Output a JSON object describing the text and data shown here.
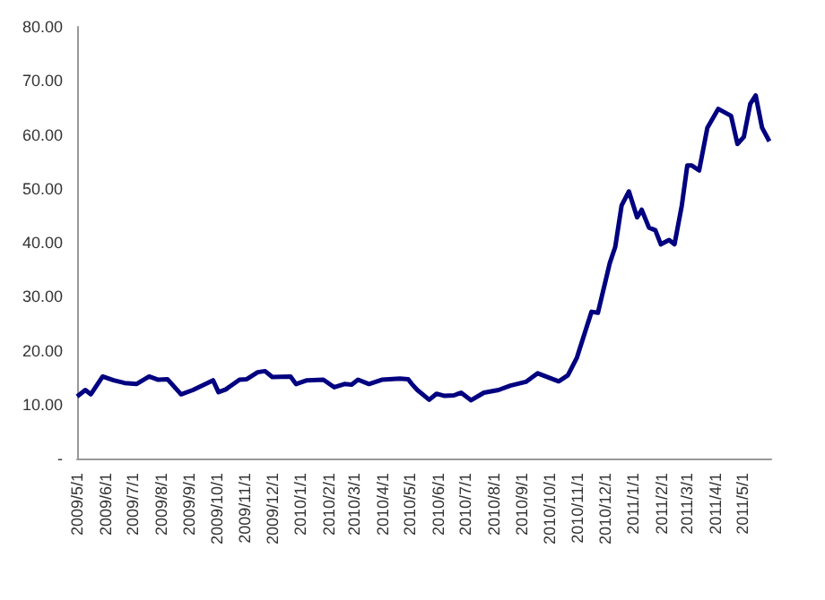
{
  "chart_data": {
    "type": "line",
    "x": [
      "2009-05-01",
      "2009-05-10",
      "2009-05-16",
      "2009-05-29",
      "2009-06-10",
      "2009-06-22",
      "2009-07-05",
      "2009-07-19",
      "2009-07-29",
      "2009-08-08",
      "2009-08-23",
      "2009-09-05",
      "2009-09-27",
      "2009-10-03",
      "2009-10-11",
      "2009-10-26",
      "2009-11-03",
      "2009-11-15",
      "2009-11-23",
      "2009-12-01",
      "2009-12-21",
      "2009-12-27",
      "2010-01-08",
      "2010-01-26",
      "2010-02-07",
      "2010-02-18",
      "2010-02-26",
      "2010-03-05",
      "2010-03-17",
      "2010-03-31",
      "2010-04-20",
      "2010-04-29",
      "2010-05-03",
      "2010-05-09",
      "2010-05-22",
      "2010-05-30",
      "2010-06-08",
      "2010-06-18",
      "2010-06-26",
      "2010-07-07",
      "2010-07-21",
      "2010-08-06",
      "2010-08-19",
      "2010-09-05",
      "2010-09-18",
      "2010-10-11",
      "2010-10-21",
      "2010-10-31",
      "2010-11-16",
      "2010-11-23",
      "2010-12-06",
      "2010-12-12",
      "2010-12-19",
      "2010-12-27",
      "2011-01-05",
      "2011-01-10",
      "2011-01-18",
      "2011-01-25",
      "2011-01-31",
      "2011-02-09",
      "2011-02-15",
      "2011-02-23",
      "2011-03-01",
      "2011-03-06",
      "2011-03-14",
      "2011-03-23",
      "2011-04-04",
      "2011-04-18",
      "2011-04-25",
      "2011-05-02",
      "2011-05-09",
      "2011-05-15",
      "2011-05-22",
      "2011-05-30"
    ],
    "series": [
      {
        "color": "#000080",
        "values": [
          11.5,
          12.7,
          11.9,
          15.2,
          14.5,
          14.0,
          13.8,
          15.2,
          14.6,
          14.7,
          11.9,
          12.7,
          14.5,
          12.3,
          12.8,
          14.6,
          14.7,
          16.0,
          16.2,
          15.1,
          15.2,
          13.8,
          14.5,
          14.6,
          13.2,
          13.8,
          13.7,
          14.6,
          13.8,
          14.6,
          14.8,
          14.7,
          13.8,
          12.7,
          10.9,
          12.0,
          11.6,
          11.7,
          12.2,
          10.8,
          12.2,
          12.7,
          13.5,
          14.2,
          15.8,
          14.3,
          15.4,
          18.7,
          27.2,
          27.0,
          36.2,
          39.2,
          46.9,
          49.5,
          44.7,
          46.1,
          42.8,
          42.3,
          39.7,
          40.5,
          39.7,
          46.9,
          54.3,
          54.3,
          53.4,
          61.3,
          64.8,
          63.5,
          58.3,
          59.6,
          65.7,
          67.3,
          61.3,
          58.8
        ]
      }
    ],
    "xlim": [
      "2009-05-01",
      "2011-06-01"
    ],
    "xticks": [
      {
        "value": "2009-05-01",
        "label": "2009/5/1"
      },
      {
        "value": "2009-06-01",
        "label": "2009/6/1"
      },
      {
        "value": "2009-07-01",
        "label": "2009/7/1"
      },
      {
        "value": "2009-08-01",
        "label": "2009/8/1"
      },
      {
        "value": "2009-09-01",
        "label": "2009/9/1"
      },
      {
        "value": "2009-10-01",
        "label": "2009/10/1"
      },
      {
        "value": "2009-11-01",
        "label": "2009/11/1"
      },
      {
        "value": "2009-12-01",
        "label": "2009/12/1"
      },
      {
        "value": "2010-01-01",
        "label": "2010/1/1"
      },
      {
        "value": "2010-02-01",
        "label": "2010/2/1"
      },
      {
        "value": "2010-03-01",
        "label": "2010/3/1"
      },
      {
        "value": "2010-04-01",
        "label": "2010/4/1"
      },
      {
        "value": "2010-05-01",
        "label": "2010/5/1"
      },
      {
        "value": "2010-06-01",
        "label": "2010/6/1"
      },
      {
        "value": "2010-07-01",
        "label": "2010/7/1"
      },
      {
        "value": "2010-08-01",
        "label": "2010/8/1"
      },
      {
        "value": "2010-09-01",
        "label": "2010/9/1"
      },
      {
        "value": "2010-10-01",
        "label": "2010/10/1"
      },
      {
        "value": "2010-11-01",
        "label": "2010/11/1"
      },
      {
        "value": "2010-12-01",
        "label": "2010/12/1"
      },
      {
        "value": "2011-01-01",
        "label": "2011/1/1"
      },
      {
        "value": "2011-02-01",
        "label": "2011/2/1"
      },
      {
        "value": "2011-03-01",
        "label": "2011/3/1"
      },
      {
        "value": "2011-04-01",
        "label": "2011/4/1"
      },
      {
        "value": "2011-05-01",
        "label": "2011/5/1"
      }
    ],
    "ylim": [
      0,
      80
    ],
    "yticks": [
      {
        "value": 0,
        "label": "-"
      },
      {
        "value": 10,
        "label": "10.00"
      },
      {
        "value": 20,
        "label": "20.00"
      },
      {
        "value": 30,
        "label": "30.00"
      },
      {
        "value": 40,
        "label": "40.00"
      },
      {
        "value": 50,
        "label": "50.00"
      },
      {
        "value": 60,
        "label": "60.00"
      },
      {
        "value": 70,
        "label": "70.00"
      },
      {
        "value": 80,
        "label": "80.00"
      }
    ],
    "grid": false,
    "marker": "none",
    "line_style": "solid"
  }
}
